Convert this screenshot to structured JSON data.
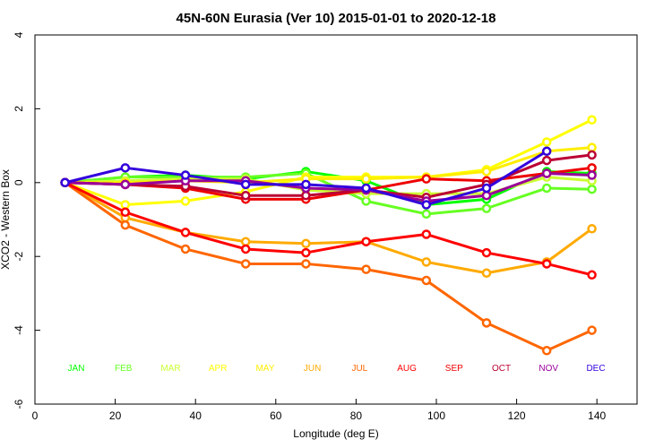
{
  "chart_data": {
    "type": "line",
    "title": "45N-60N Eurasia (Ver 10)   2015-01-01 to 2020-12-18",
    "xlabel": "Longitude (deg E)",
    "ylabel": "XCO2 - Western Box",
    "xlim": [
      0,
      150
    ],
    "ylim": [
      -6,
      4
    ],
    "xticks": [
      0,
      20,
      40,
      60,
      80,
      100,
      120,
      140
    ],
    "yticks": [
      -6,
      -4,
      -2,
      0,
      2,
      4
    ],
    "grid": false,
    "legend_position": "bottom",
    "x": [
      7.5,
      22.5,
      37.5,
      52.5,
      67.5,
      82.5,
      97.5,
      112.5,
      127.5,
      138.75
    ],
    "series": [
      {
        "name": "JAN",
        "color": "#00ff00",
        "values": [
          0,
          0.15,
          0.2,
          0.1,
          0.3,
          0.05,
          -0.6,
          -0.45,
          0.3,
          0.25
        ]
      },
      {
        "name": "FEB",
        "color": "#66ff22",
        "values": [
          0,
          0.15,
          0.15,
          0.15,
          0.25,
          -0.5,
          -0.85,
          -0.7,
          -0.15,
          -0.18
        ]
      },
      {
        "name": "MAR",
        "color": "#ccff33",
        "values": [
          0,
          0.05,
          0.1,
          0.1,
          -0.2,
          -0.3,
          -0.3,
          -0.3,
          0.15,
          0.05
        ]
      },
      {
        "name": "APR",
        "color": "#ffff00",
        "values": [
          0,
          -0.6,
          -0.5,
          -0.25,
          0.15,
          0.15,
          0.15,
          0.35,
          1.1,
          1.7
        ]
      },
      {
        "name": "MAY",
        "color": "#ffee00",
        "values": [
          0,
          0.0,
          0.05,
          0.0,
          0.1,
          0.1,
          0.15,
          0.3,
          0.85,
          0.95
        ]
      },
      {
        "name": "JUN",
        "color": "#ffaa00",
        "values": [
          0,
          -0.95,
          -1.35,
          -1.6,
          -1.65,
          -1.6,
          -2.15,
          -2.45,
          -2.15,
          -1.25
        ]
      },
      {
        "name": "JUL",
        "color": "#ff6600",
        "values": [
          0,
          -1.15,
          -1.8,
          -2.2,
          -2.2,
          -2.35,
          -2.65,
          -3.8,
          -4.55,
          -4.0
        ]
      },
      {
        "name": "AUG",
        "color": "#ff0000",
        "values": [
          0,
          -0.8,
          -1.35,
          -1.8,
          -1.9,
          -1.6,
          -1.4,
          -1.9,
          -2.2,
          -2.5
        ]
      },
      {
        "name": "SEP",
        "color": "#ee0000",
        "values": [
          0,
          -0.05,
          -0.15,
          -0.45,
          -0.45,
          -0.2,
          0.1,
          0.05,
          0.25,
          0.4
        ]
      },
      {
        "name": "OCT",
        "color": "#bb0033",
        "values": [
          0,
          -0.05,
          -0.1,
          -0.35,
          -0.35,
          -0.2,
          -0.4,
          -0.05,
          0.6,
          0.75
        ]
      },
      {
        "name": "NOV",
        "color": "#990099",
        "values": [
          0,
          -0.05,
          0.05,
          0.05,
          -0.15,
          -0.2,
          -0.5,
          -0.35,
          0.25,
          0.2
        ]
      },
      {
        "name": "DEC",
        "color": "#3300dd",
        "values": [
          0,
          0.4,
          0.2,
          -0.05,
          -0.05,
          -0.15,
          -0.6,
          -0.15,
          0.85,
          null
        ]
      }
    ]
  }
}
